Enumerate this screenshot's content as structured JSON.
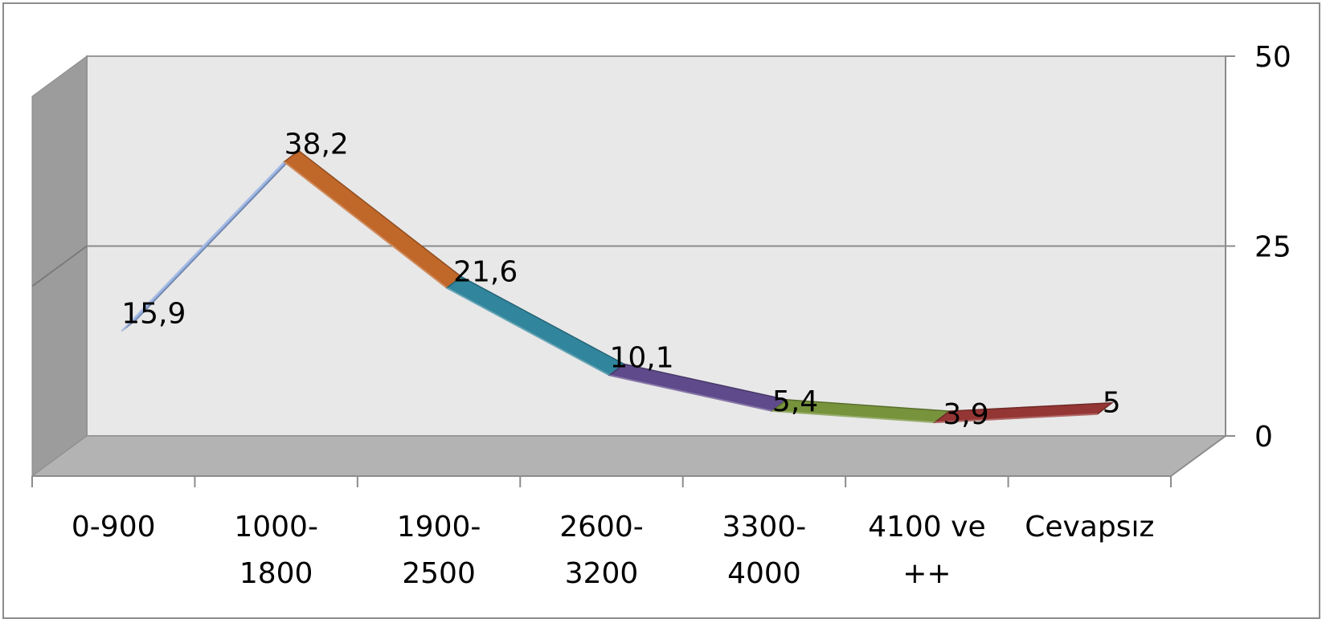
{
  "chart_data": {
    "type": "line",
    "style": "3d",
    "categories": [
      "0-900",
      "1000-1800",
      "1900-2500",
      "2600-3200",
      "3300-4000",
      "4100 ve ++",
      "Cevapsız"
    ],
    "category_lines": [
      [
        "0-900"
      ],
      [
        "1000-",
        "1800"
      ],
      [
        "1900-",
        "2500"
      ],
      [
        "2600-",
        "3200"
      ],
      [
        "3300-",
        "4000"
      ],
      [
        "4100 ve",
        "++"
      ],
      [
        "Cevapsız"
      ]
    ],
    "values": [
      15.9,
      38.2,
      21.6,
      10.1,
      5.4,
      3.9,
      5
    ],
    "value_labels": [
      "15,9",
      "38,2",
      "21,6",
      "10,1",
      "5,4",
      "3,9",
      "5"
    ],
    "segment_colors": [
      "#8faadc",
      "#c0672a",
      "#31859c",
      "#5f4a8b",
      "#77933c",
      "#943634"
    ],
    "yaxis": {
      "position": "right",
      "ticks": [
        "0",
        "25",
        "50"
      ],
      "tick_values": [
        0,
        25,
        50
      ]
    },
    "ylim": [
      0,
      50
    ],
    "grid": true,
    "legend": "none",
    "wall_color": "#e8e8e8",
    "side_wall_color": "#9c9c9c",
    "floor_color": "#b3b3b3"
  }
}
